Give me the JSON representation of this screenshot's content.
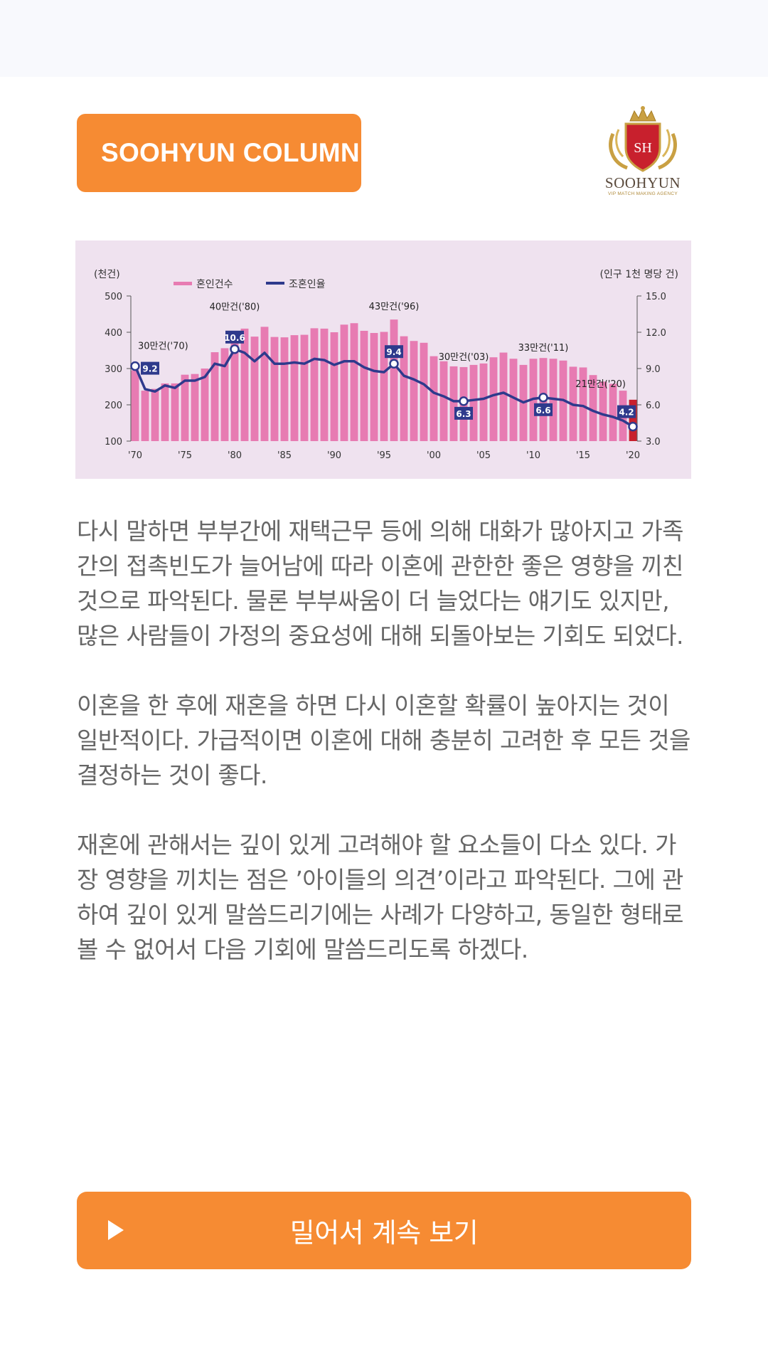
{
  "header": {
    "badge_label": "SOOHYUN COLUMN",
    "logo": {
      "monogram": "SH",
      "name": "SOOHYUN",
      "tagline": "VIP MATCH MAKING AGENCY",
      "colors": {
        "gold": "#c9a043",
        "red": "#c8202d"
      }
    }
  },
  "chart_data": {
    "type": "bar",
    "left_axis_label": "(천건)",
    "right_axis_label": "(인구 1천 명당 건)",
    "legend": [
      {
        "name": "혼인건수",
        "type": "bar",
        "color": "#e77bb2"
      },
      {
        "name": "조혼인율",
        "type": "line",
        "color": "#2e3a8c"
      }
    ],
    "ylim_left": [
      100,
      500
    ],
    "yticks_left": [
      "100",
      "200",
      "300",
      "400",
      "500"
    ],
    "ylim_right": [
      3.0,
      15.0
    ],
    "yticks_right": [
      "3.0",
      "6.0",
      "9.0",
      "12.0",
      "15.0"
    ],
    "x_tick_labels": [
      "'70",
      "'75",
      "'80",
      "'85",
      "'90",
      "'95",
      "'00",
      "'05",
      "'10",
      "'15",
      "'20"
    ],
    "x_tick_years": [
      1970,
      1975,
      1980,
      1985,
      1990,
      1995,
      2000,
      2005,
      2010,
      2015,
      2020
    ],
    "years": [
      1970,
      1971,
      1972,
      1973,
      1974,
      1975,
      1976,
      1977,
      1978,
      1979,
      1980,
      1981,
      1982,
      1983,
      1984,
      1985,
      1986,
      1987,
      1988,
      1989,
      1990,
      1991,
      1992,
      1993,
      1994,
      1995,
      1996,
      1997,
      1998,
      1999,
      2000,
      2001,
      2002,
      2003,
      2004,
      2005,
      2006,
      2007,
      2008,
      2009,
      2010,
      2011,
      2012,
      2013,
      2014,
      2015,
      2016,
      2017,
      2018,
      2019,
      2020
    ],
    "series": [
      {
        "name": "혼인건수",
        "type": "bar",
        "values": [
          295,
          239,
          244,
          259,
          259,
          283,
          285,
          300,
          345,
          356,
          403,
          410,
          388,
          415,
          387,
          386,
          392,
          393,
          411,
          410,
          400,
          421,
          425,
          404,
          398,
          401,
          435,
          389,
          376,
          371,
          334,
          320,
          306,
          304,
          310,
          314,
          331,
          344,
          327,
          310,
          327,
          329,
          327,
          322,
          305,
          303,
          282,
          264,
          258,
          239,
          214
        ]
      },
      {
        "name": "조혼인율",
        "type": "line",
        "values": [
          9.2,
          7.3,
          7.1,
          7.6,
          7.4,
          8.0,
          8.0,
          8.3,
          9.4,
          9.2,
          10.6,
          10.3,
          9.6,
          10.3,
          9.4,
          9.4,
          9.5,
          9.4,
          9.8,
          9.7,
          9.3,
          9.6,
          9.6,
          9.1,
          8.8,
          8.7,
          9.4,
          8.4,
          8.1,
          7.7,
          7.0,
          6.7,
          6.3,
          6.3,
          6.4,
          6.5,
          6.8,
          7.0,
          6.6,
          6.2,
          6.5,
          6.6,
          6.5,
          6.4,
          6.0,
          5.9,
          5.5,
          5.2,
          5.0,
          4.7,
          4.2
        ]
      }
    ],
    "annotations": [
      {
        "year": 1970,
        "text": "30만건('70)",
        "rate": "9.2"
      },
      {
        "year": 1980,
        "text": "40만건('80)",
        "rate": "10.6"
      },
      {
        "year": 1996,
        "text": "43만건('96)",
        "rate": "9.4"
      },
      {
        "year": 2003,
        "text": "30만건('03)",
        "rate": "6.3"
      },
      {
        "year": 2011,
        "text": "33만건('11)",
        "rate": "6.6"
      },
      {
        "year": 2020,
        "text": "21만건('20)",
        "rate": "4.2"
      }
    ],
    "highlight_bar_color": "#c8202d",
    "grid": false
  },
  "article": {
    "paragraphs": [
      "  다시 말하면 부부간에 재택근무 등에 의해 대화가 많아지고 가족 간의 접촉빈도가 늘어남에 따라 이혼에 관한한 좋은 영향을 끼친 것으로 파악된다. 물론 부부싸움이 더 늘었다는 얘기도 있지만, 많은 사람들이 가정의 중요성에 대해 되돌아보는 기회도 되었다.",
      "  이혼을 한 후에 재혼을 하면 다시 이혼할 확률이 높아지는 것이 일반적이다. 가급적이면 이혼에 대해 충분히 고려한 후 모든 것을 결정하는 것이 좋다.",
      "  재혼에 관해서는 깊이 있게 고려해야 할 요소들이 다소 있다. 가장 영향을 끼치는 점은 ’아이들의 의견’이라고 파악된다. 그에 관하여 깊이 있게 말씀드리기에는 사례가 다양하고, 동일한 형태로 볼 수 없어서 다음 기회에 말씀드리도록 하겠다."
    ]
  },
  "cta": {
    "label": "밀어서 계속 보기",
    "icon": "play-icon",
    "color": "#f68b33"
  }
}
